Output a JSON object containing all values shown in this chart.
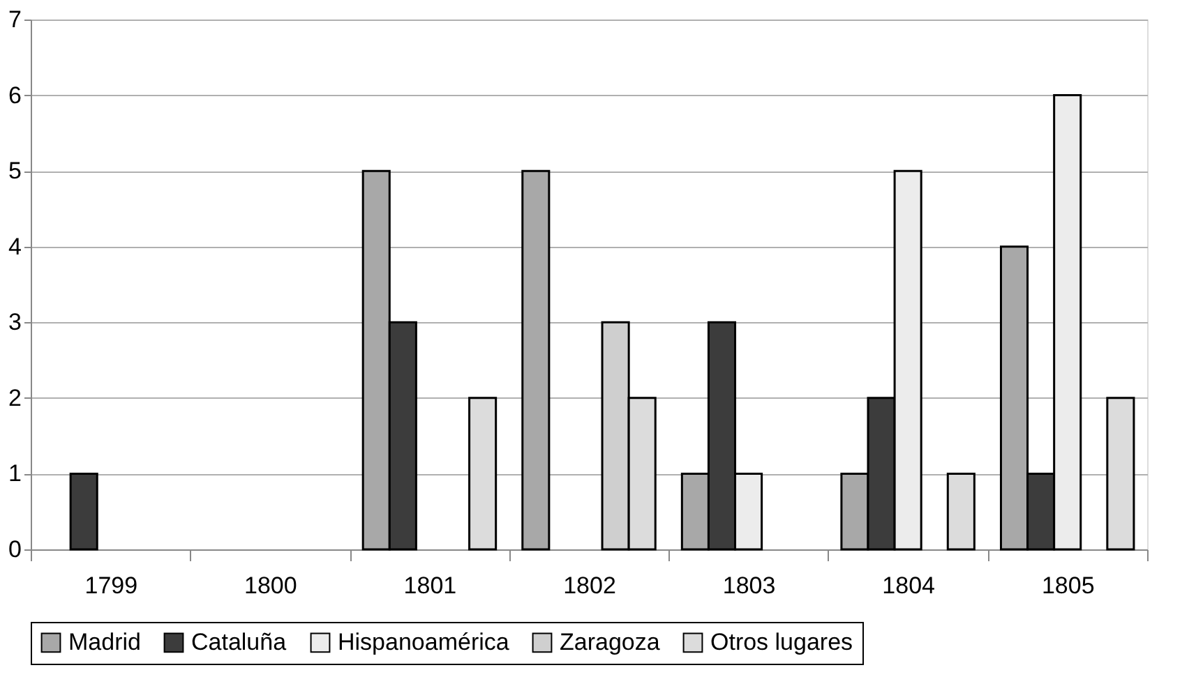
{
  "chart_data": {
    "type": "bar",
    "categories": [
      "1799",
      "1800",
      "1801",
      "1802",
      "1803",
      "1804",
      "1805"
    ],
    "series": [
      {
        "name": "Madrid",
        "color": "#a8a8a8",
        "values": [
          0,
          0,
          5,
          5,
          1,
          1,
          4
        ]
      },
      {
        "name": "Cataluña",
        "color": "#3c3c3c",
        "values": [
          1,
          0,
          3,
          0,
          3,
          2,
          1
        ]
      },
      {
        "name": "Hispanoamérica",
        "color": "#ececec",
        "values": [
          0,
          0,
          0,
          0,
          1,
          5,
          6
        ]
      },
      {
        "name": "Zaragoza",
        "color": "#cfcfcf",
        "values": [
          0,
          0,
          0,
          3,
          0,
          0,
          0
        ]
      },
      {
        "name": "Otros lugares",
        "color": "#dcdcdc",
        "values": [
          0,
          0,
          2,
          2,
          0,
          1,
          2
        ]
      }
    ],
    "ylim": [
      0,
      7
    ],
    "yticks": [
      0,
      1,
      2,
      3,
      4,
      5,
      6,
      7
    ],
    "grid": "y",
    "legend": "bottom"
  }
}
